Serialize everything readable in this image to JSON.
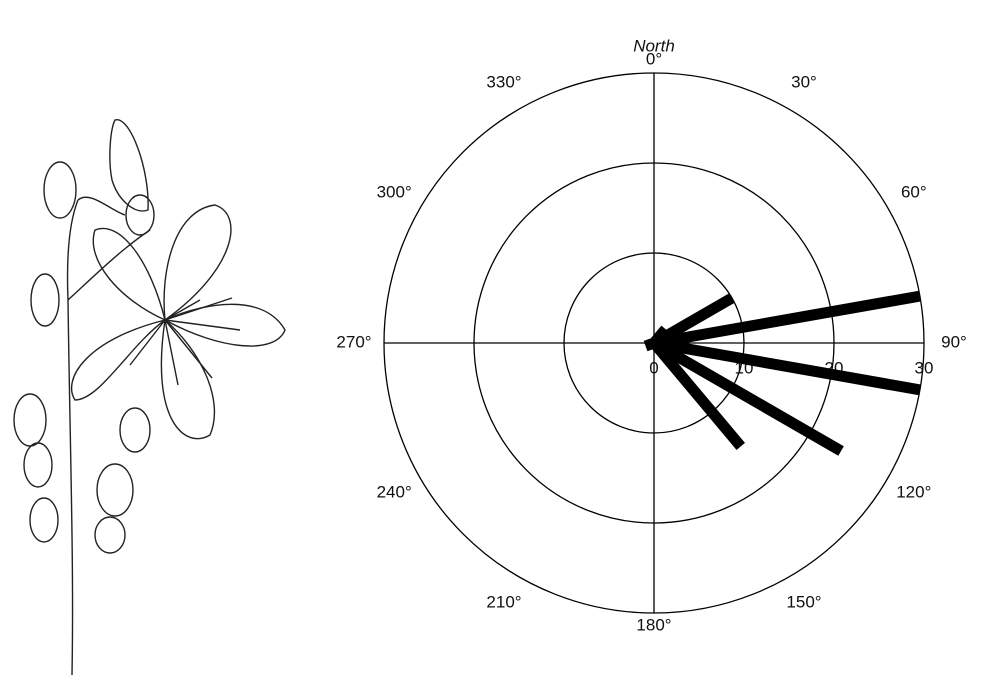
{
  "chart_data": {
    "type": "polar-bar",
    "direction_label": "North",
    "theta": [
      40,
      60,
      80,
      100,
      120,
      140,
      250
    ],
    "values": [
      2,
      10,
      30,
      30,
      24,
      15,
      1
    ],
    "color": "#000000",
    "rlim": [
      0,
      30
    ],
    "rticks": [
      0,
      10,
      20,
      30
    ],
    "thetaticks": [
      {
        "value": 0,
        "label": "0°"
      },
      {
        "value": 30,
        "label": "30°"
      },
      {
        "value": 60,
        "label": "60°"
      },
      {
        "value": 90,
        "label": "90°"
      },
      {
        "value": 120,
        "label": "120°"
      },
      {
        "value": 150,
        "label": "150°"
      },
      {
        "value": 180,
        "label": "180°"
      },
      {
        "value": 210,
        "label": "210°"
      },
      {
        "value": 240,
        "label": "240°"
      },
      {
        "value": 270,
        "label": "270°"
      },
      {
        "value": 300,
        "label": "300°"
      },
      {
        "value": 330,
        "label": "330°"
      }
    ]
  }
}
